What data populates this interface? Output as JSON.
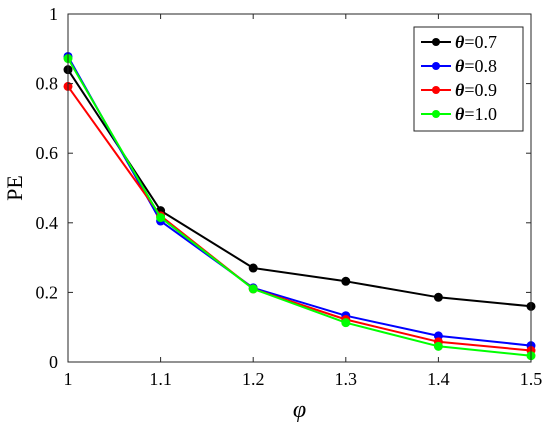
{
  "chart_data": {
    "type": "line",
    "title": "",
    "xlabel": "φ",
    "ylabel": "PE",
    "xlim": [
      1,
      1.5
    ],
    "ylim": [
      0,
      1
    ],
    "grid": false,
    "legend_position": "top-right",
    "x": [
      1,
      1.1,
      1.2,
      1.3,
      1.4,
      1.5
    ],
    "x_tick_labels": [
      "1",
      "1.1",
      "1.2",
      "1.3",
      "1.4",
      "1.5"
    ],
    "y_ticks": [
      0,
      0.2,
      0.4,
      0.6,
      0.8,
      1
    ],
    "y_tick_labels": [
      "0",
      "0.2",
      "0.4",
      "0.6",
      "0.8",
      "1"
    ],
    "series": [
      {
        "name": "θ=0.7",
        "legend_symbol": "θ",
        "legend_value": "=0.7",
        "color": "#000000",
        "values": [
          0.84,
          0.435,
          0.27,
          0.232,
          0.186,
          0.16
        ]
      },
      {
        "name": "θ=0.8",
        "legend_symbol": "θ",
        "legend_value": "=0.8",
        "color": "#0000ff",
        "values": [
          0.878,
          0.405,
          0.213,
          0.133,
          0.075,
          0.047
        ]
      },
      {
        "name": "θ=0.9",
        "legend_symbol": "θ",
        "legend_value": "=0.9",
        "color": "#ff0000",
        "values": [
          0.792,
          0.42,
          0.21,
          0.122,
          0.058,
          0.033
        ]
      },
      {
        "name": "θ=1.0",
        "legend_symbol": "θ",
        "legend_value": "=1.0",
        "color": "#00ff00",
        "values": [
          0.872,
          0.415,
          0.21,
          0.113,
          0.045,
          0.018
        ]
      }
    ]
  }
}
